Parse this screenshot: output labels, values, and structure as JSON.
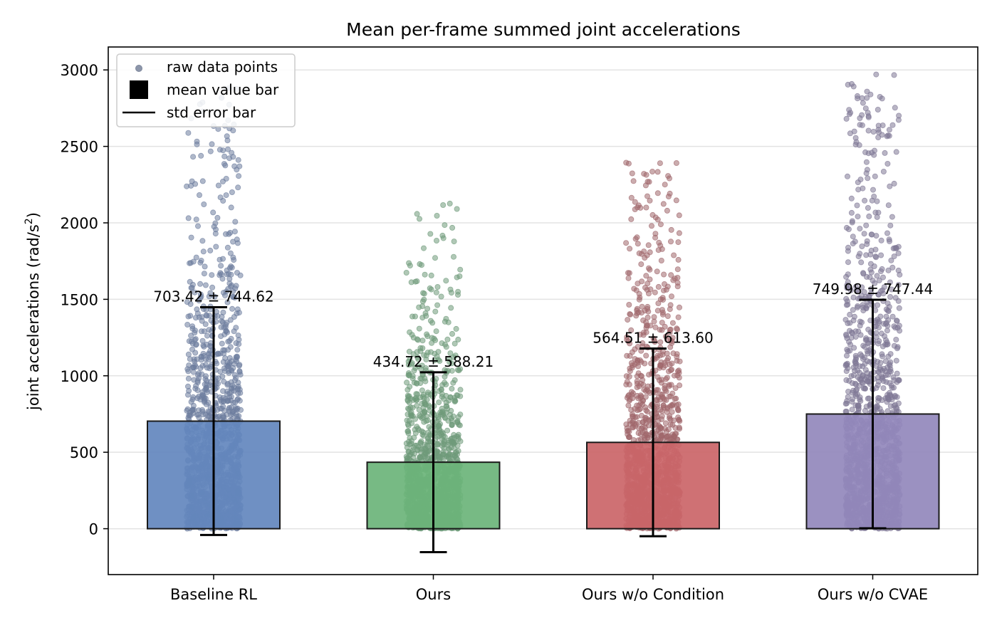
{
  "chart_data": {
    "type": "bar",
    "title": "Mean per-frame summed joint accelerations",
    "xlabel": "",
    "ylabel": "joint accelerations (rad/s",
    "ylabel_sup": "2",
    "ylabel_close": ")",
    "ylim": [
      -300,
      3150
    ],
    "yticks": [
      0,
      500,
      1000,
      1500,
      2000,
      2500,
      3000
    ],
    "ytick_labels": [
      "0",
      "500",
      "1000",
      "1500",
      "2000",
      "2500",
      "3000"
    ],
    "grid": "horizontal",
    "legend_position": "top-left",
    "legend": {
      "raw": "raw data points",
      "mean": "mean value bar",
      "std": "std error bar"
    },
    "categories": [
      "Baseline RL",
      "Ours",
      "Ours w/o Condition",
      "Ours w/o CVAE"
    ],
    "values": [
      703.42,
      434.72,
      564.51,
      749.98
    ],
    "std": [
      744.62,
      588.21,
      613.6,
      747.44
    ],
    "annotations": [
      "703.42 ± 744.62",
      "434.72 ± 588.21",
      "564.51 ± 613.60",
      "749.98 ± 747.44"
    ],
    "raw_max": [
      2900,
      2160,
      2400,
      2980
    ],
    "bar_colors": [
      "#6387be",
      "#6bb47a",
      "#cb6568",
      "#9388bc"
    ],
    "point_colors": [
      "#6d7d9e",
      "#6f9a7a",
      "#a0676c",
      "#7f7896"
    ]
  }
}
